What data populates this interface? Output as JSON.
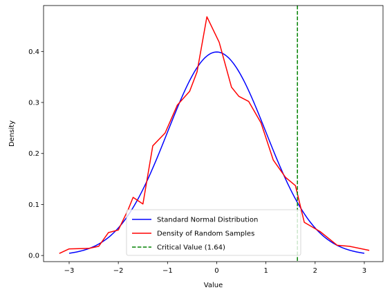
{
  "chart_data": {
    "type": "line",
    "title": "",
    "xlabel": "Value",
    "ylabel": "Density",
    "xlim": [
      -3.52,
      3.38
    ],
    "ylim": [
      -0.012,
      0.49
    ],
    "xticks": [
      -3,
      -2,
      -1,
      0,
      1,
      2,
      3
    ],
    "yticks": [
      0.0,
      0.1,
      0.2,
      0.3,
      0.4
    ],
    "xtick_labels": [
      "−3",
      "−2",
      "−1",
      "0",
      "1",
      "2",
      "3"
    ],
    "ytick_labels": [
      "0.0",
      "0.1",
      "0.2",
      "0.3",
      "0.4"
    ],
    "grid": false,
    "legend_position": "bottom-center",
    "series": [
      {
        "name": "Standard Normal Distribution",
        "color": "#0000ff",
        "style": "solid",
        "function": "standard_normal_pdf",
        "x_range": [
          -3,
          3
        ]
      },
      {
        "name": "Density of Random Samples",
        "color": "#ff0000",
        "style": "solid",
        "x": [
          -3.2,
          -3.0,
          -2.6,
          -2.4,
          -2.2,
          -2.0,
          -1.8,
          -1.7,
          -1.5,
          -1.3,
          -1.05,
          -0.8,
          -0.55,
          -0.4,
          -0.2,
          0.05,
          0.3,
          0.45,
          0.65,
          0.9,
          1.15,
          1.4,
          1.6,
          1.78,
          2.1,
          2.45,
          2.7,
          3.1
        ],
        "y": [
          0.004,
          0.013,
          0.014,
          0.018,
          0.045,
          0.05,
          0.09,
          0.114,
          0.101,
          0.215,
          0.24,
          0.295,
          0.322,
          0.36,
          0.468,
          0.418,
          0.33,
          0.312,
          0.302,
          0.26,
          0.187,
          0.153,
          0.137,
          0.065,
          0.047,
          0.02,
          0.018,
          0.01
        ]
      },
      {
        "name": "Critical Value (1.64)",
        "color": "#008000",
        "style": "dashed",
        "type": "vline",
        "x": 1.64
      }
    ]
  }
}
